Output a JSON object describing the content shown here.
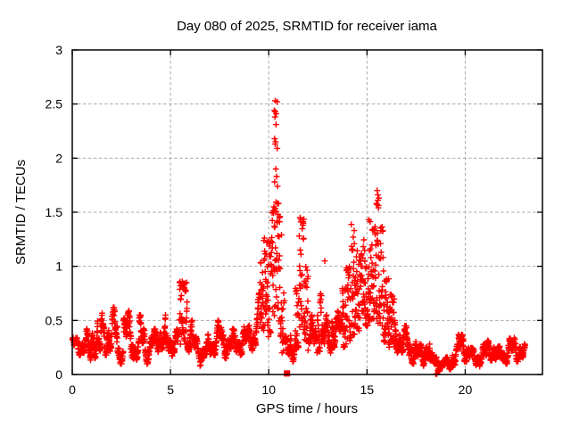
{
  "chart_data": {
    "type": "scatter",
    "title": "Day 080 of 2025, SRMTID for receiver iama",
    "xlabel": "GPS time / hours",
    "ylabel": "SRMTID / TECUs",
    "xlim": [
      0,
      23.93
    ],
    "ylim": [
      0,
      3
    ],
    "xticks": [
      0,
      5,
      10,
      15,
      20
    ],
    "xtick_labels": [
      "0",
      "5",
      "10",
      "15",
      "20"
    ],
    "yticks": [
      0,
      0.5,
      1,
      1.5,
      2,
      2.5,
      3
    ],
    "ytick_labels": [
      "0",
      "0.5",
      "1",
      "1.5",
      "2",
      "2.5",
      "3"
    ],
    "grid": true,
    "legend": "none",
    "marker": "plus",
    "series_color": "#ff0000",
    "grid_color": "#a9a9a9",
    "border_color": "#000000",
    "sample_rate_per_hour": 120,
    "envelope_bins": [
      [
        0.0,
        0.5,
        0.18,
        0.36
      ],
      [
        0.5,
        0.8,
        0.12,
        0.42
      ],
      [
        0.8,
        0.95,
        0.1,
        0.3
      ],
      [
        0.95,
        1.3,
        0.15,
        0.52
      ],
      [
        1.3,
        1.45,
        0.1,
        0.35
      ],
      [
        1.45,
        1.9,
        0.18,
        0.58
      ],
      [
        1.9,
        2.0,
        0.15,
        0.4
      ],
      [
        2.0,
        2.3,
        0.18,
        0.62
      ],
      [
        2.3,
        2.6,
        0.1,
        0.35
      ],
      [
        2.6,
        3.1,
        0.15,
        0.6
      ],
      [
        3.1,
        3.4,
        0.1,
        0.35
      ],
      [
        3.4,
        3.7,
        0.15,
        0.55
      ],
      [
        3.7,
        4.0,
        0.1,
        0.35
      ],
      [
        4.0,
        4.3,
        0.15,
        0.42
      ],
      [
        4.3,
        4.75,
        0.2,
        0.55
      ],
      [
        4.75,
        5.1,
        0.12,
        0.38
      ],
      [
        5.1,
        5.45,
        0.2,
        0.5
      ],
      [
        5.45,
        5.85,
        0.28,
        0.89
      ],
      [
        5.85,
        6.1,
        0.2,
        0.5
      ],
      [
        6.1,
        6.5,
        0.15,
        0.38
      ],
      [
        6.5,
        6.9,
        0.08,
        0.3
      ],
      [
        6.9,
        7.2,
        0.15,
        0.4
      ],
      [
        7.2,
        7.6,
        0.18,
        0.5
      ],
      [
        7.6,
        8.0,
        0.15,
        0.42
      ],
      [
        8.0,
        8.5,
        0.15,
        0.42
      ],
      [
        8.5,
        9.0,
        0.18,
        0.45
      ],
      [
        9.0,
        9.35,
        0.22,
        0.5
      ],
      [
        9.35,
        9.55,
        0.3,
        0.75
      ],
      [
        9.55,
        9.75,
        0.4,
        1.05
      ],
      [
        9.75,
        9.95,
        0.45,
        1.3
      ],
      [
        9.95,
        10.15,
        0.35,
        1.25
      ],
      [
        10.15,
        10.3,
        0.5,
        1.6
      ],
      [
        10.3,
        10.5,
        0.6,
        1.65
      ],
      [
        10.5,
        10.65,
        0.35,
        1.5
      ],
      [
        10.65,
        10.8,
        0.2,
        0.8
      ],
      [
        10.8,
        11.1,
        0.08,
        0.35
      ],
      [
        11.1,
        11.35,
        0.12,
        0.45
      ],
      [
        11.35,
        11.55,
        0.25,
        0.8
      ],
      [
        11.55,
        11.8,
        0.4,
        1.45
      ],
      [
        11.8,
        12.0,
        0.3,
        1.0
      ],
      [
        12.0,
        12.2,
        0.2,
        0.55
      ],
      [
        12.2,
        12.45,
        0.15,
        0.5
      ],
      [
        12.45,
        12.7,
        0.2,
        0.75
      ],
      [
        12.7,
        12.95,
        0.15,
        0.55
      ],
      [
        12.95,
        13.2,
        0.15,
        0.5
      ],
      [
        13.2,
        13.45,
        0.25,
        0.7
      ],
      [
        13.45,
        13.7,
        0.2,
        0.6
      ],
      [
        13.7,
        13.95,
        0.25,
        0.8
      ],
      [
        13.95,
        14.2,
        0.3,
        1.0
      ],
      [
        14.2,
        14.5,
        0.35,
        1.4
      ],
      [
        14.5,
        14.8,
        0.4,
        1.15
      ],
      [
        14.8,
        15.05,
        0.45,
        1.3
      ],
      [
        15.05,
        15.25,
        0.5,
        1.45
      ],
      [
        15.25,
        15.5,
        0.5,
        1.4
      ],
      [
        15.5,
        15.65,
        0.45,
        1.72
      ],
      [
        15.65,
        15.85,
        0.35,
        1.5
      ],
      [
        15.85,
        16.1,
        0.3,
        0.9
      ],
      [
        16.1,
        16.4,
        0.25,
        0.75
      ],
      [
        16.4,
        16.7,
        0.2,
        0.5
      ],
      [
        16.7,
        17.1,
        0.15,
        0.45
      ],
      [
        17.1,
        17.5,
        0.1,
        0.35
      ],
      [
        17.5,
        17.9,
        0.08,
        0.28
      ],
      [
        17.9,
        18.2,
        0.1,
        0.42
      ],
      [
        18.2,
        18.6,
        0.04,
        0.2
      ],
      [
        18.6,
        19.0,
        0.03,
        0.15
      ],
      [
        19.0,
        19.35,
        0.04,
        0.16
      ],
      [
        19.35,
        19.65,
        0.08,
        0.28
      ],
      [
        19.65,
        20.05,
        0.12,
        0.42
      ],
      [
        20.05,
        20.35,
        0.1,
        0.3
      ],
      [
        20.35,
        20.75,
        0.07,
        0.24
      ],
      [
        20.75,
        21.1,
        0.1,
        0.28
      ],
      [
        21.1,
        21.5,
        0.13,
        0.33
      ],
      [
        21.5,
        21.85,
        0.1,
        0.26
      ],
      [
        21.85,
        22.15,
        0.1,
        0.26
      ],
      [
        22.15,
        22.55,
        0.12,
        0.34
      ],
      [
        22.55,
        22.9,
        0.12,
        0.35
      ],
      [
        22.9,
        23.05,
        0.1,
        0.28
      ]
    ],
    "sparse_points": [
      [
        10.33,
        2.53
      ],
      [
        10.43,
        2.52
      ],
      [
        10.28,
        2.44
      ],
      [
        10.33,
        2.43
      ],
      [
        10.38,
        2.41
      ],
      [
        10.31,
        2.38
      ],
      [
        10.37,
        2.31
      ],
      [
        10.3,
        2.18
      ],
      [
        10.35,
        2.15
      ],
      [
        10.33,
        2.13
      ],
      [
        10.43,
        2.09
      ],
      [
        10.36,
        1.9
      ],
      [
        10.4,
        1.83
      ],
      [
        10.3,
        1.78
      ],
      [
        10.45,
        1.74
      ],
      [
        10.55,
        1.45
      ],
      [
        11.6,
        1.45
      ],
      [
        11.63,
        1.41
      ],
      [
        12.85,
        1.05
      ],
      [
        14.35,
        1.33
      ],
      [
        14.3,
        1.27
      ],
      [
        14.28,
        1.15
      ],
      [
        15.1,
        1.43
      ],
      [
        15.52,
        1.7
      ],
      [
        15.55,
        1.66
      ],
      [
        15.6,
        1.63
      ],
      [
        15.48,
        1.58
      ],
      [
        15.58,
        1.54
      ],
      [
        18.5,
        0.005
      ],
      [
        18.56,
        0.005
      ]
    ],
    "square_marker_point": [
      10.93,
      0.01
    ]
  }
}
